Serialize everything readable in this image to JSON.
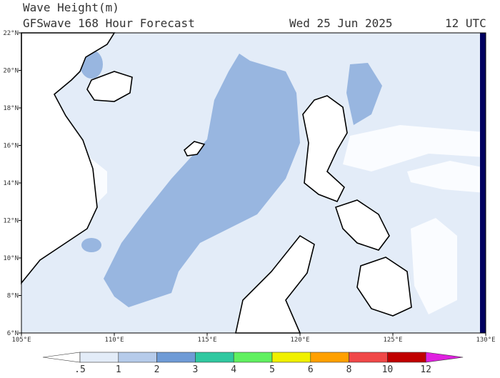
{
  "header": {
    "title": "Wave Height(m)",
    "subtitle": "GFSwave 168 Hour Forecast",
    "date": "Wed 25 Jun 2025",
    "time": "12 UTC"
  },
  "map": {
    "lat_labels": [
      "6°N",
      "8°N",
      "10°N",
      "12°N",
      "14°N",
      "16°N",
      "18°N",
      "20°N",
      "22°N"
    ],
    "lon_labels": [
      "105°E",
      "110°E",
      "115°E",
      "120°E",
      "125°E",
      "130°E"
    ]
  },
  "colorbar": {
    "labels": [
      ".5",
      "1",
      "2",
      "3",
      "4",
      "5",
      "6",
      "8",
      "10",
      "12"
    ],
    "under_color": "#ffffff",
    "over_color": "#e020e0",
    "colors": [
      "#e3ecf8",
      "#b6cbea",
      "#6f9bd6",
      "#30c8a0",
      "#60f060",
      "#f0f000",
      "#ffa000",
      "#f04848",
      "#c00000"
    ]
  }
}
